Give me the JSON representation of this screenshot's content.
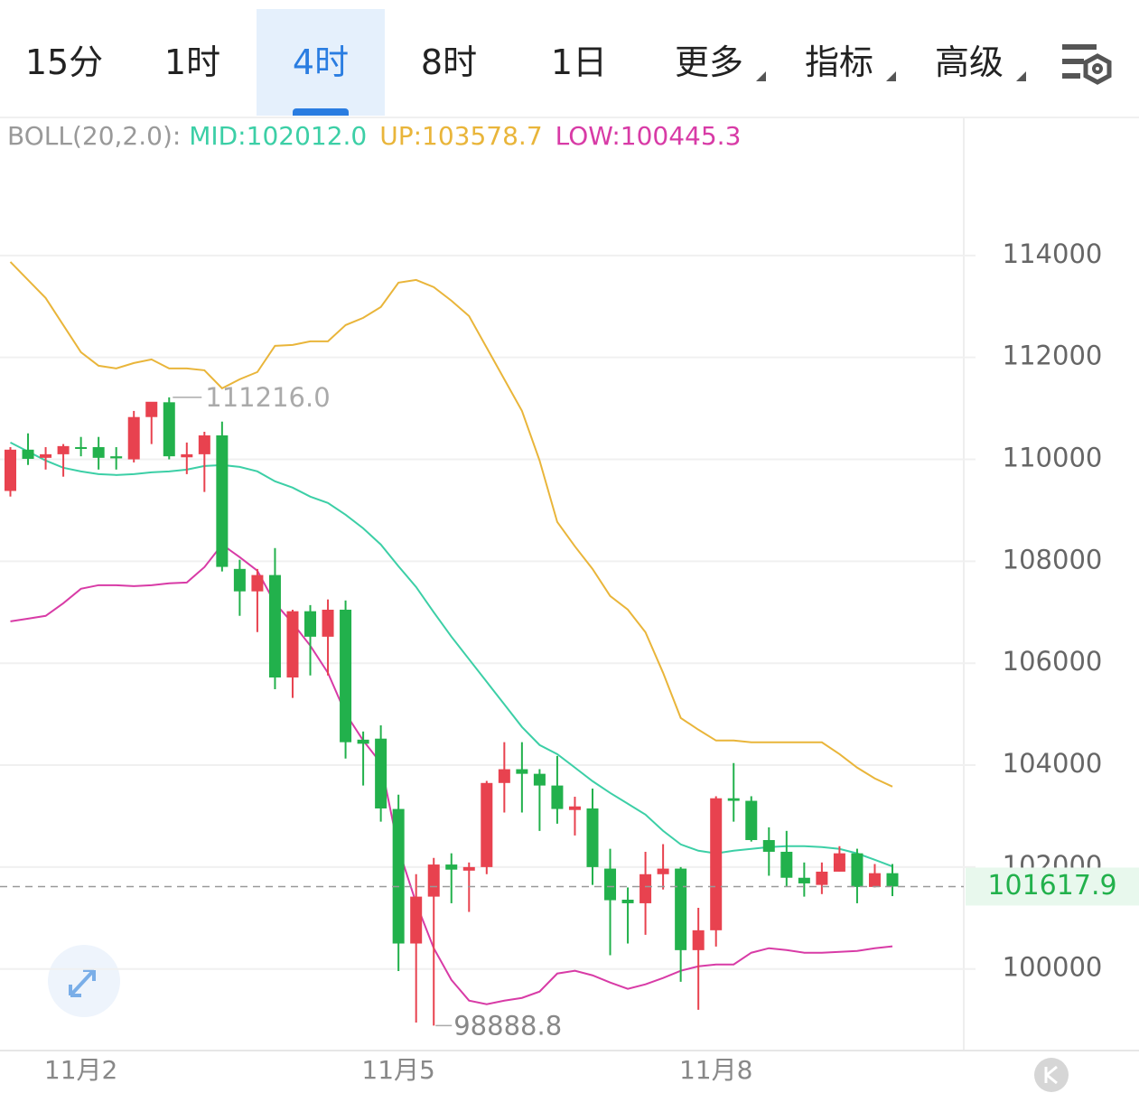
{
  "tabs": [
    "15分",
    "1时",
    "4时",
    "8时",
    "1日",
    "更多",
    "指标",
    "高级"
  ],
  "active_tab": 2,
  "chart_data": {
    "type": "candlestick",
    "indicator": "BOLL(20,2.0):",
    "categories": [
      null,
      null,
      null,
      null,
      "11月2",
      null,
      null,
      null,
      null,
      null,
      null,
      null,
      null,
      null,
      null,
      null,
      null,
      null,
      null,
      null,
      null,
      null,
      "11月5",
      null,
      null,
      null,
      null,
      null,
      null,
      null,
      null,
      null,
      null,
      null,
      null,
      null,
      null,
      null,
      null,
      null,
      "11月8",
      null,
      null,
      null,
      null,
      null,
      null,
      null,
      null,
      null,
      null
    ],
    "open": [
      109380,
      110190,
      110030,
      110100,
      110240,
      110240,
      110060,
      110000,
      110830,
      111120,
      110040,
      110100,
      110470,
      107850,
      107410,
      107730,
      105720,
      107020,
      106520,
      107050,
      104500,
      104520,
      103140,
      100500,
      101420,
      102050,
      101930,
      102000,
      103650,
      103920,
      103830,
      103600,
      103120,
      103150,
      101970,
      101360,
      101290,
      101860,
      101970,
      100370,
      100760,
      103350,
      103300,
      102530,
      102300,
      101790,
      101650,
      101910,
      102270,
      101610,
      101880
    ],
    "high": [
      110240,
      110510,
      110240,
      110300,
      110440,
      110440,
      110240,
      110950,
      111100,
      111216.0,
      110330,
      110540,
      110740,
      108030,
      107850,
      108260,
      107050,
      107140,
      107250,
      107230,
      104660,
      104780,
      103420,
      101860,
      102180,
      102270,
      102090,
      103690,
      104450,
      104450,
      103920,
      104180,
      103380,
      103540,
      102360,
      101600,
      102300,
      102450,
      102000,
      101200,
      103390,
      104040,
      103390,
      102780,
      102710,
      102090,
      102090,
      102410,
      102360,
      102060,
      102060
    ],
    "low": [
      109270,
      109890,
      109800,
      109660,
      110060,
      109800,
      109800,
      109940,
      110300,
      110000,
      109710,
      109360,
      107800,
      106930,
      106610,
      105490,
      105320,
      105760,
      105760,
      104130,
      103600,
      102890,
      99960,
      98950,
      98888.8,
      101290,
      101120,
      101860,
      103070,
      103070,
      102710,
      102850,
      102620,
      101650,
      100270,
      100500,
      100670,
      101560,
      99750,
      99200,
      100440,
      102890,
      102500,
      101830,
      101610,
      101420,
      101470,
      101910,
      101290,
      101600,
      101430
    ],
    "close": [
      110190,
      110010,
      110100,
      110260,
      110210,
      110030,
      110020,
      110830,
      111130,
      110060,
      110100,
      110470,
      107890,
      107410,
      107730,
      105720,
      107020,
      106520,
      107050,
      104450,
      104420,
      103150,
      100500,
      101420,
      102050,
      101950,
      102000,
      103650,
      103920,
      103830,
      103600,
      103140,
      103190,
      102000,
      101350,
      101290,
      101860,
      101970,
      100370,
      100760,
      103350,
      103300,
      102530,
      102300,
      101790,
      101680,
      101910,
      102270,
      101610,
      101880,
      101617.9
    ],
    "high_labels": {
      "9": "111216.0"
    },
    "low_labels": {
      "24": "98888.8"
    },
    "up_color": "#e8424f",
    "down_color": "#22b14c",
    "series": [
      {
        "name": "MID:",
        "color": "#3ccfa6",
        "value_labels": {
          "50": "102012.0"
        },
        "values": [
          110331,
          110154,
          109977,
          109835,
          109764,
          109711,
          109693,
          109711,
          109746,
          109764,
          109799,
          109870,
          109888,
          109852,
          109764,
          109569,
          109445,
          109268,
          109144,
          108913,
          108647,
          108328,
          107903,
          107496,
          106999,
          106521,
          106078,
          105635,
          105192,
          104749,
          104395,
          104217,
          103952,
          103686,
          103455,
          103243,
          103030,
          102711,
          102445,
          102321,
          102268,
          102321,
          102357,
          102392,
          102410,
          102410,
          102392,
          102357,
          102268,
          102144,
          102012.0
        ]
      },
      {
        "name": "UP:",
        "color": "#e9b53a",
        "value_labels": {
          "50": "103578.7"
        },
        "values": [
          113875,
          113520,
          113166,
          112634,
          112102,
          111837,
          111784,
          111890,
          111961,
          111784,
          111784,
          111748,
          111394,
          111571,
          111713,
          112227,
          112244,
          112315,
          112315,
          112634,
          112776,
          112989,
          113467,
          113520,
          113379,
          113113,
          112812,
          112191,
          111571,
          110951,
          109976,
          108771,
          108293,
          107850,
          107318,
          107052,
          106609,
          105812,
          104926,
          104696,
          104483,
          104483,
          104448,
          104448,
          104448,
          104448,
          104448,
          104217,
          103952,
          103739,
          103578.7
        ]
      },
      {
        "name": "LOW:",
        "color": "#d83ba6",
        "value_labels": {
          "50": "100445.3"
        },
        "values": [
          106822,
          106875,
          106929,
          107177,
          107460,
          107531,
          107531,
          107513,
          107531,
          107567,
          107584,
          107885,
          108328,
          108080,
          107815,
          107177,
          106787,
          106344,
          105812,
          105015,
          104483,
          104040,
          102357,
          101294,
          100408,
          99787,
          99380,
          99309,
          99380,
          99433,
          99557,
          99911,
          99965,
          99876,
          99734,
          99610,
          99699,
          99823,
          99965,
          100053,
          100089,
          100089,
          100319,
          100408,
          100372,
          100319,
          100319,
          100337,
          100354,
          100408,
          100445.3
        ]
      }
    ],
    "ylim": [
      98400,
      116000
    ],
    "yticks": [
      100000,
      102000,
      104000,
      106000,
      108000,
      110000,
      112000,
      114000
    ],
    "grid": true
  }
}
